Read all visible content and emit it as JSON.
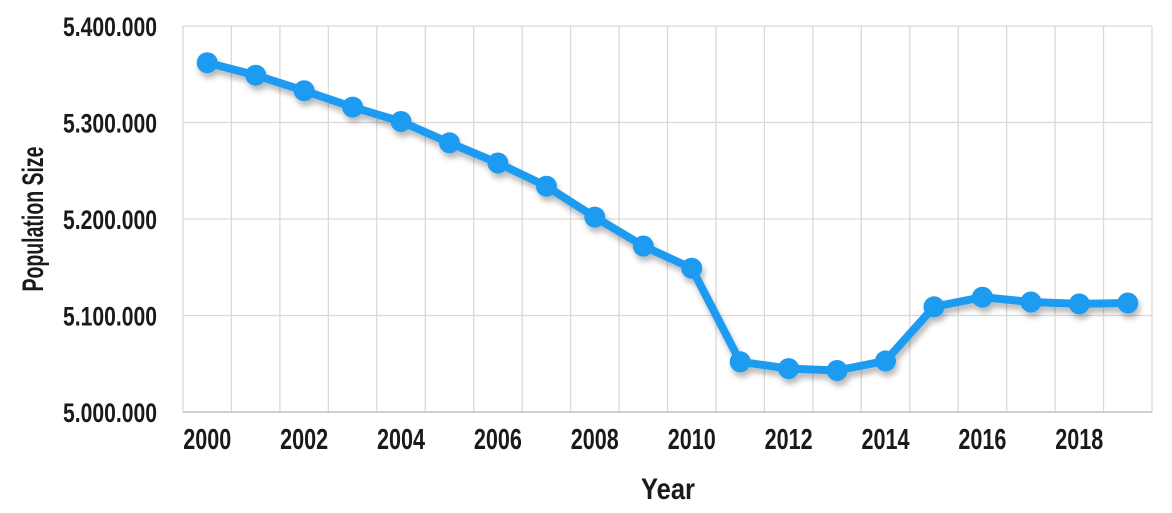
{
  "chart_data": {
    "type": "line",
    "title": "",
    "xlabel": "Year",
    "ylabel": "Population Size",
    "x": [
      2000,
      2001,
      2002,
      2003,
      2004,
      2005,
      2006,
      2007,
      2008,
      2009,
      2010,
      2011,
      2012,
      2013,
      2014,
      2015,
      2016,
      2017,
      2018,
      2019
    ],
    "values": [
      5362000,
      5349000,
      5333000,
      5316000,
      5301000,
      5279000,
      5258000,
      5234000,
      5202000,
      5172000,
      5149000,
      5052000,
      5045000,
      5043000,
      5053000,
      5109000,
      5119000,
      5114000,
      5112000,
      5113000
    ],
    "ylim": [
      5000000,
      5400000
    ],
    "ytick_step": 100000,
    "ytick_labels": [
      "5.000.000",
      "5.100.000",
      "5.200.000",
      "5.300.000",
      "5.400.000"
    ],
    "xtick_labels": [
      "2000",
      "2002",
      "2004",
      "2006",
      "2008",
      "2010",
      "2012",
      "2014",
      "2016",
      "2018"
    ],
    "xtick_every": 2,
    "grid": true,
    "legend": false,
    "line_color": "#1E9BF0",
    "marker_color": "#1E9BF0",
    "grid_color": "#D9D9D9",
    "axis_line_color": "#BFBFBF",
    "text_color": "#1A1A1A"
  }
}
